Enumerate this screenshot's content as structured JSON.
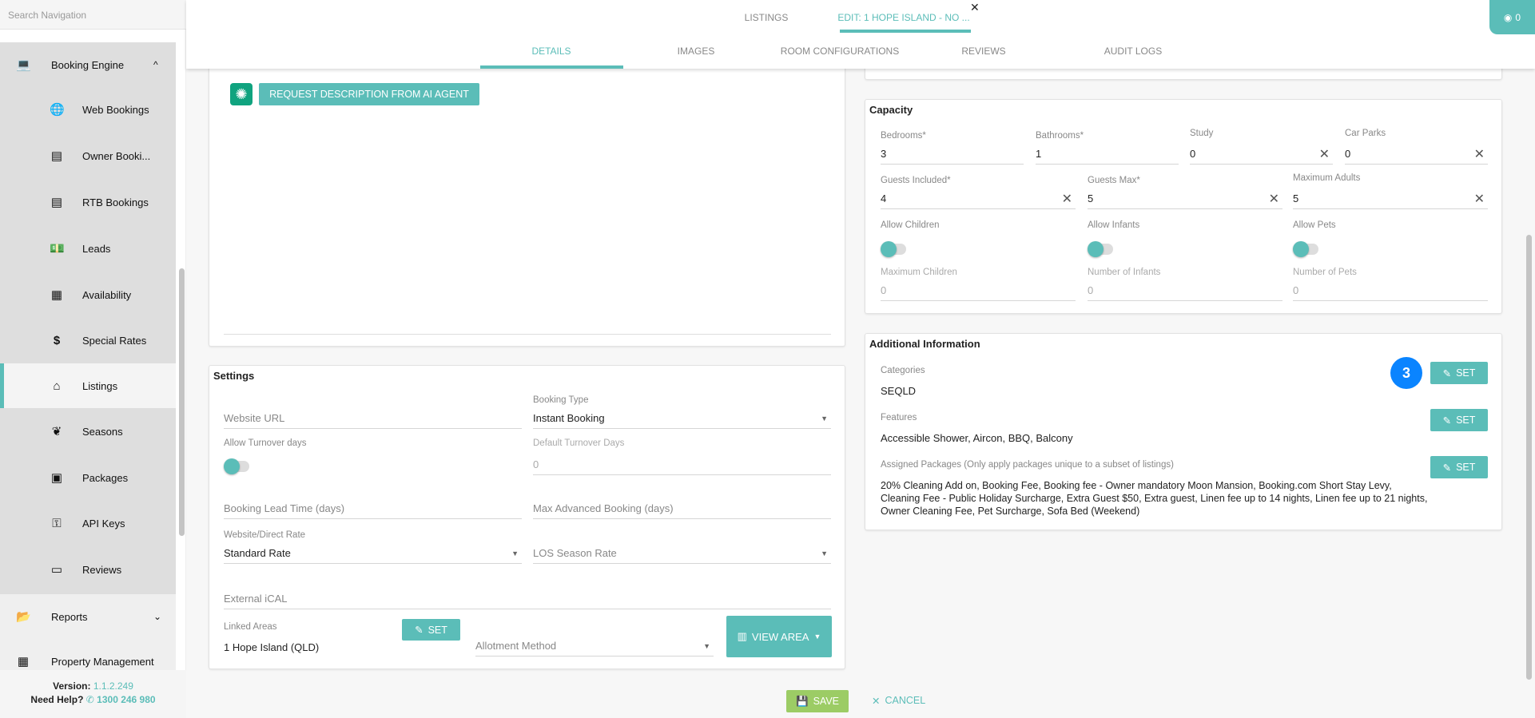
{
  "sidebar": {
    "search_placeholder": "Search Navigation",
    "booking_engine": "Booking Engine",
    "items": [
      {
        "label": "Web Bookings",
        "icon": "globe-icon"
      },
      {
        "label": "Owner Booki...",
        "icon": "book-icon"
      },
      {
        "label": "RTB Bookings",
        "icon": "book-icon"
      },
      {
        "label": "Leads",
        "icon": "money-icon"
      },
      {
        "label": "Availability",
        "icon": "calendar-icon"
      },
      {
        "label": "Special Rates",
        "icon": "dollar-icon"
      },
      {
        "label": "Listings",
        "icon": "home-icon"
      },
      {
        "label": "Seasons",
        "icon": "leaf-icon"
      },
      {
        "label": "Packages",
        "icon": "box-icon"
      },
      {
        "label": "API Keys",
        "icon": "key-icon"
      },
      {
        "label": "Reviews",
        "icon": "id-card-icon"
      }
    ],
    "reports": "Reports",
    "property_management": "Property Management",
    "version_label": "Version:",
    "version": "1.1.2.249",
    "help_label": "Need Help?",
    "phone": "1300 246 980"
  },
  "header": {
    "tabs": [
      "LISTINGS",
      "EDIT: 1 HOPE ISLAND - NO ..."
    ],
    "subtabs": [
      "DETAILS",
      "IMAGES",
      "ROOM CONFIGURATIONS",
      "REVIEWS",
      "AUDIT LOGS"
    ],
    "badge_count": "0"
  },
  "description": {
    "ai_button": "REQUEST DESCRIPTION FROM AI AGENT"
  },
  "settings": {
    "title": "Settings",
    "website_url": "Website URL",
    "booking_type_label": "Booking Type",
    "booking_type": "Instant Booking",
    "allow_turnover": "Allow Turnover days",
    "default_turnover_label": "Default Turnover Days",
    "default_turnover": "0",
    "lead_time": "Booking Lead Time (days)",
    "max_advanced": "Max Advanced Booking (days)",
    "direct_rate_label": "Website/Direct Rate",
    "direct_rate": "Standard Rate",
    "los_rate": "LOS Season Rate",
    "ical": "External iCAL",
    "linked_areas_label": "Linked Areas",
    "linked_areas": "1 Hope Island (QLD)",
    "set": "SET",
    "allotment": "Allotment Method",
    "view_area": "VIEW AREA"
  },
  "capacity": {
    "title": "Capacity",
    "bedrooms_label": "Bedrooms",
    "bedrooms": "3",
    "bathrooms_label": "Bathrooms",
    "bathrooms": "1",
    "study_label": "Study",
    "study": "0",
    "carparks_label": "Car Parks",
    "carparks": "0",
    "guests_included_label": "Guests Included",
    "guests_included": "4",
    "guests_max_label": "Guests Max",
    "guests_max": "5",
    "max_adults_label": "Maximum Adults",
    "max_adults": "5",
    "allow_children": "Allow Children",
    "allow_infants": "Allow Infants",
    "allow_pets": "Allow Pets",
    "max_children_label": "Maximum Children",
    "max_children": "0",
    "infants_label": "Number of Infants",
    "infants": "0",
    "pets_label": "Number of Pets",
    "pets": "0",
    "required_mark": "*"
  },
  "additional": {
    "title": "Additional Information",
    "categories_label": "Categories",
    "categories": "SEQLD",
    "features_label": "Features",
    "features": "Accessible Shower, Aircon, BBQ, Balcony",
    "packages_label": "Assigned Packages (Only apply packages unique to a subset of listings)",
    "packages": "20% Cleaning Add on, Booking Fee, Booking fee - Owner mandatory Moon Mansion, Booking.com Short Stay Levy, Cleaning Fee - Public Holiday Surcharge, Extra Guest $50, Extra guest, Linen fee up to 14 nights, Linen fee up to 21 nights, Owner Cleaning Fee, Pet Surcharge, Sofa Bed (Weekend)",
    "set": "SET",
    "step_badge": "3"
  },
  "actions": {
    "save": "SAVE",
    "cancel": "CANCEL"
  },
  "colors": {
    "accent": "#5bbdb8",
    "save": "#9ccc65",
    "badge": "#0a84ff"
  }
}
